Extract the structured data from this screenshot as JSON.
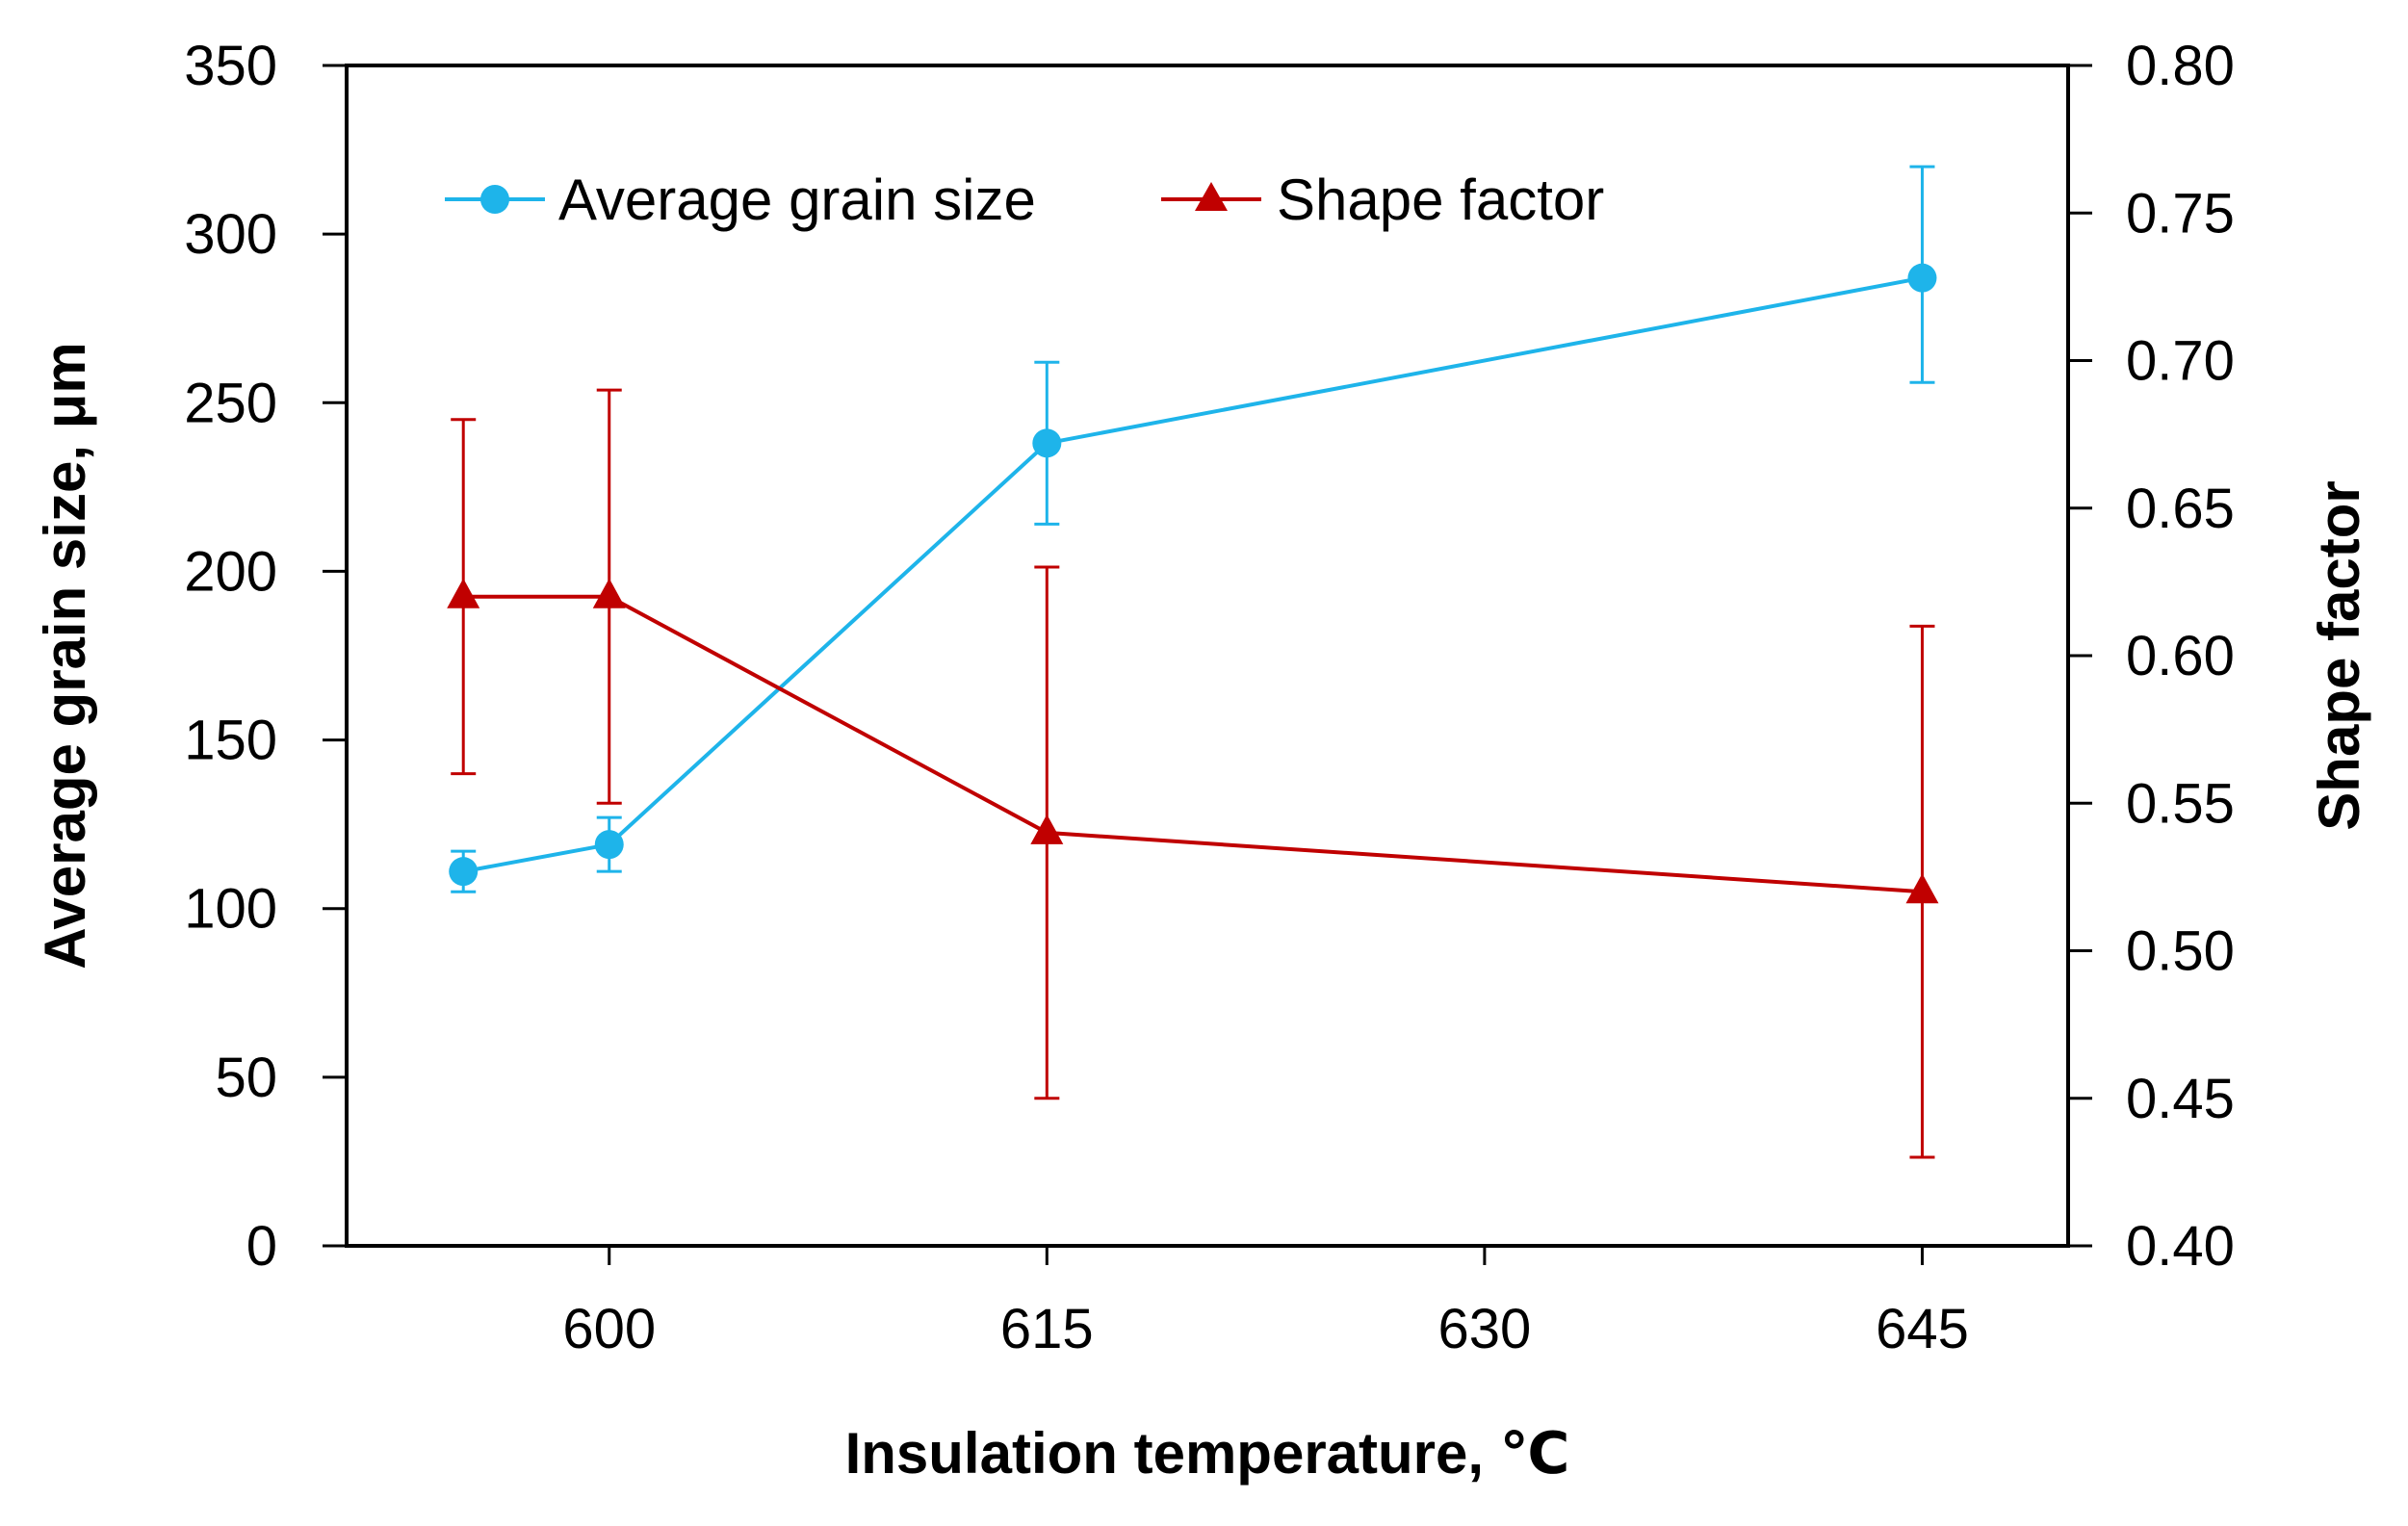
{
  "chart_data": {
    "type": "line",
    "title": "",
    "xlabel": "Insulation temperature, ℃",
    "ylabel_left": "Average grain size, μm",
    "ylabel_right": "Shape factor",
    "xlim": [
      591,
      650
    ],
    "ylim_left": [
      0,
      350
    ],
    "ylim_right": [
      0.4,
      0.8
    ],
    "x_ticks": [
      600,
      615,
      630,
      645
    ],
    "x_tick_labels": [
      "600",
      "615",
      "630",
      "645"
    ],
    "y_left_ticks": [
      0,
      50,
      100,
      150,
      200,
      250,
      300,
      350
    ],
    "y_left_tick_labels": [
      "0",
      "50",
      "100",
      "150",
      "200",
      "250",
      "300",
      "350"
    ],
    "y_right_ticks": [
      0.4,
      0.45,
      0.5,
      0.55,
      0.6,
      0.65,
      0.7,
      0.75,
      0.8
    ],
    "y_right_tick_labels": [
      "0.40",
      "0.45",
      "0.50",
      "0.55",
      "0.60",
      "0.65",
      "0.70",
      "0.75",
      "0.80"
    ],
    "grid": false,
    "legend_position": "top-left",
    "series": [
      {
        "name": "Average grain size",
        "axis": "left",
        "color": "#1eb4ea",
        "marker": "circle",
        "x": [
          595,
          600,
          615,
          645
        ],
        "values": [
          111,
          119,
          238,
          287
        ],
        "err_upper": [
          117,
          127,
          262,
          320
        ],
        "err_lower": [
          105,
          111,
          214,
          256
        ]
      },
      {
        "name": "Shape factor",
        "axis": "right",
        "color": "#c00000",
        "marker": "triangle",
        "x": [
          595,
          600,
          615,
          645
        ],
        "values": [
          0.62,
          0.62,
          0.54,
          0.52
        ],
        "err_upper": [
          0.68,
          0.69,
          0.63,
          0.61
        ],
        "err_lower": [
          0.56,
          0.55,
          0.45,
          0.43
        ]
      }
    ]
  }
}
